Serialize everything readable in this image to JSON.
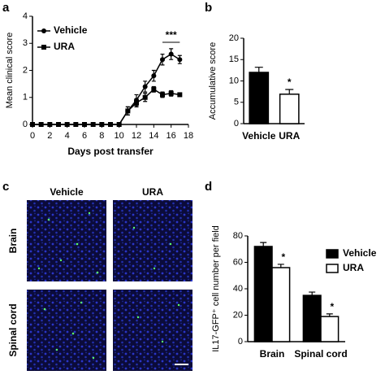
{
  "chart_data": [
    {
      "type": "line",
      "panel": "a",
      "x_label": "Days post transfer",
      "y_label": "Mean clinical score",
      "x": [
        0,
        1,
        2,
        3,
        4,
        5,
        6,
        7,
        8,
        9,
        10,
        11,
        12,
        13,
        14,
        15,
        16,
        17
      ],
      "series": [
        {
          "name": "Vehicle",
          "color": "#000000",
          "marker": "circle",
          "values": [
            0,
            0,
            0,
            0,
            0,
            0,
            0,
            0,
            0,
            0,
            0,
            0.5,
            0.9,
            1.4,
            1.8,
            2.4,
            2.6,
            2.4
          ],
          "errors": [
            0,
            0,
            0,
            0,
            0,
            0,
            0,
            0,
            0,
            0,
            0,
            0.15,
            0.2,
            0.2,
            0.2,
            0.2,
            0.2,
            0.15
          ]
        },
        {
          "name": "URA",
          "color": "#000000",
          "marker": "square",
          "values": [
            0,
            0,
            0,
            0,
            0,
            0,
            0,
            0,
            0,
            0,
            0,
            0.5,
            0.8,
            1.0,
            1.3,
            1.1,
            1.15,
            1.1
          ],
          "errors": [
            0,
            0,
            0,
            0,
            0,
            0,
            0,
            0,
            0,
            0,
            0,
            0.15,
            0.15,
            0.15,
            0.1,
            0.1,
            0.1,
            0.05
          ]
        }
      ],
      "xlim": [
        0,
        18
      ],
      "xticks": [
        0,
        2,
        4,
        6,
        8,
        10,
        12,
        14,
        16,
        18
      ],
      "ylim": [
        0,
        4
      ],
      "yticks": [
        0,
        1,
        2,
        3,
        4
      ],
      "annotation": "***"
    },
    {
      "type": "bar",
      "panel": "b",
      "y_label": "Accumulative score",
      "categories": [
        "Vehicle",
        "URA"
      ],
      "values": [
        12,
        6.9
      ],
      "errors": [
        1.2,
        1.1
      ],
      "colors": [
        "#000000",
        "#ffffff"
      ],
      "ylim": [
        0,
        20
      ],
      "yticks": [
        0,
        5,
        10,
        15,
        20
      ],
      "annotations": [
        null,
        "*"
      ]
    },
    {
      "type": "grouped-bar",
      "panel": "d",
      "y_label": "IL17-GFP⁺ cell number per field",
      "categories": [
        "Brain",
        "Spinal cord"
      ],
      "series": [
        {
          "name": "Vehicle",
          "color": "#000000",
          "values": [
            72,
            35
          ],
          "errors": [
            3,
            2.5
          ]
        },
        {
          "name": "URA",
          "color": "#ffffff",
          "values": [
            56,
            19
          ],
          "errors": [
            2.5,
            2
          ],
          "annotations": [
            "*",
            "*"
          ]
        }
      ],
      "ylim": [
        0,
        80
      ],
      "yticks": [
        0,
        20,
        40,
        60,
        80
      ]
    }
  ],
  "images": {
    "panel": "c",
    "columns": [
      "Vehicle",
      "URA"
    ],
    "rows": [
      "Brain",
      "Spinal cord"
    ]
  }
}
